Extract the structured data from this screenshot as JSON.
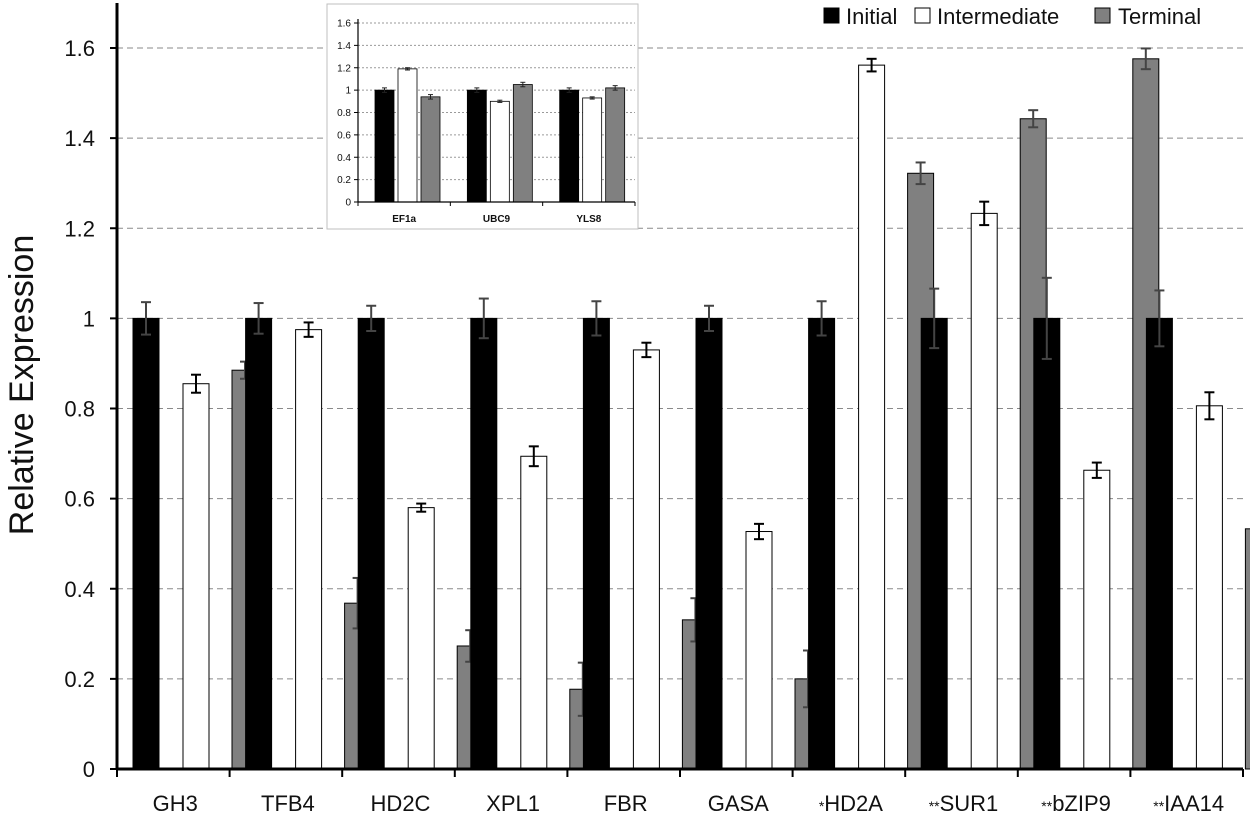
{
  "chart_data": [
    {
      "type": "bar",
      "title": "",
      "xlabel": "",
      "ylabel": "Relative Expression",
      "ylim": [
        0,
        1.7
      ],
      "yticks": [
        "0",
        "0.2",
        "0.4",
        "0.6",
        "0.8",
        "1",
        "1.2",
        "1.4",
        "1.6"
      ],
      "grid": "horizontal dashed",
      "legend_position": "top-right",
      "categories": [
        "GH3",
        "TFB4",
        "HD2C",
        "XPL1",
        "FBR",
        "GASA",
        "HD2A",
        "SUR1",
        "bZIP9",
        "IAA14"
      ],
      "category_prefixes": [
        "",
        "",
        "",
        "",
        "",
        "",
        "*",
        "**",
        "**",
        "**"
      ],
      "series": [
        {
          "name": "Initial",
          "color": "#000000",
          "values": [
            1,
            1,
            1,
            1,
            1,
            1,
            1,
            1,
            1,
            1
          ],
          "errors": [
            0.036,
            0.034,
            0.028,
            0.044,
            0.038,
            0.028,
            0.038,
            0.066,
            0.09,
            0.062
          ]
        },
        {
          "name": "Intermediate",
          "color": "#ffffff",
          "values": [
            0.855,
            0.975,
            0.58,
            0.694,
            0.93,
            0.527,
            1.562,
            1.233,
            0.663,
            0.806
          ],
          "errors": [
            0.02,
            0.016,
            0.009,
            0.022,
            0.016,
            0.017,
            0.014,
            0.026,
            0.017,
            0.03
          ]
        },
        {
          "name": "Terminal",
          "color": "#808080",
          "values": [
            0.885,
            0.368,
            0.273,
            0.177,
            0.331,
            0.2,
            1.322,
            1.443,
            1.576,
            0.533
          ],
          "errors": [
            0.019,
            0.056,
            0.035,
            0.059,
            0.048,
            0.063,
            0.024,
            0.019,
            0.023,
            0.034
          ]
        }
      ]
    },
    {
      "type": "bar",
      "title": "",
      "ylim": [
        0,
        1.6
      ],
      "yticks": [
        "0",
        "0.2",
        "0.4",
        "0.6",
        "0.8",
        "1",
        "1.2",
        "1.4",
        "1.6"
      ],
      "grid": "horizontal dotted",
      "categories": [
        "EF1a",
        "UBC9",
        "YLS8"
      ],
      "series": [
        {
          "name": "Initial",
          "color": "#000000",
          "values": [
            1.0,
            1.0,
            1.0
          ],
          "errors": [
            0.02,
            0.02,
            0.02
          ]
        },
        {
          "name": "Intermediate",
          "color": "#ffffff",
          "values": [
            1.19,
            0.9,
            0.93
          ],
          "errors": [
            0.01,
            0.01,
            0.01
          ]
        },
        {
          "name": "Terminal",
          "color": "#808080",
          "values": [
            0.94,
            1.05,
            1.02
          ],
          "errors": [
            0.02,
            0.02,
            0.02
          ]
        }
      ]
    }
  ]
}
